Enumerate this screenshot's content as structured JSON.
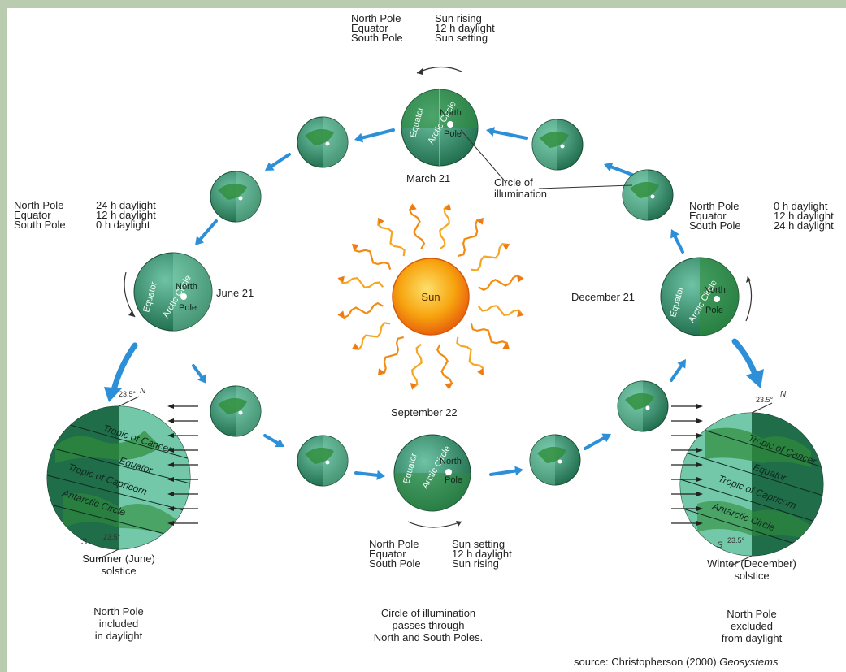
{
  "seasons": {
    "march": {
      "date": "March 21",
      "rows": [
        {
          "place": "North Pole",
          "state": "Sun rising"
        },
        {
          "place": "Equator",
          "state": "12 h daylight"
        },
        {
          "place": "South Pole",
          "state": "Sun setting"
        }
      ]
    },
    "june": {
      "date": "June 21",
      "rows": [
        {
          "place": "North Pole",
          "state": "24 h daylight"
        },
        {
          "place": "Equator",
          "state": "12 h daylight"
        },
        {
          "place": "South Pole",
          "state": "0 h daylight"
        }
      ]
    },
    "december": {
      "date": "December 21",
      "rows": [
        {
          "place": "North Pole",
          "state": "0 h daylight"
        },
        {
          "place": "Equator",
          "state": "12 h daylight"
        },
        {
          "place": "South Pole",
          "state": "24 h daylight"
        }
      ]
    },
    "september": {
      "date": "September 22",
      "rows": [
        {
          "place": "North Pole",
          "state": "Sun setting"
        },
        {
          "place": "Equator",
          "state": "12 h daylight"
        },
        {
          "place": "South Pole",
          "state": "Sun rising"
        }
      ]
    }
  },
  "sun_label": "Sun",
  "globe_labels": {
    "equator": "Equator",
    "arctic_circle": "Arctic Circle",
    "north": "North",
    "pole": "Pole"
  },
  "circle_of_illumination": [
    "Circle of",
    "illumination"
  ],
  "solstice_globe": {
    "tropic_cancer": "Tropic of Cancer",
    "equator": "Equator",
    "tropic_capricorn": "Tropic of Capricorn",
    "antarctic": "Antarctic Circle",
    "north_tilt": "23.5°",
    "south_tilt": "23.5°",
    "n": "N",
    "s": "S"
  },
  "summer": {
    "title": [
      "Summer (June)",
      "solstice"
    ],
    "note": [
      "North Pole",
      "included",
      "in daylight"
    ]
  },
  "winter": {
    "title": [
      "Winter (December)",
      "solstice"
    ],
    "note": [
      "North Pole",
      "excluded",
      "from daylight"
    ]
  },
  "center_note": [
    "Circle of illumination",
    "passes through",
    "North and South Poles."
  ],
  "source": {
    "prefix": "source: Christopherson (2000) ",
    "title": "Geosystems"
  },
  "colors": {
    "background": "#b9ccb0",
    "ocean_dark": "#1d5e3e",
    "ocean_light": "#5fb79c",
    "land": "#2f8c3a",
    "arrow_blue": "#2d8fd8",
    "sun_core": "#f7a40f",
    "sun_ray": "#f07a12"
  }
}
